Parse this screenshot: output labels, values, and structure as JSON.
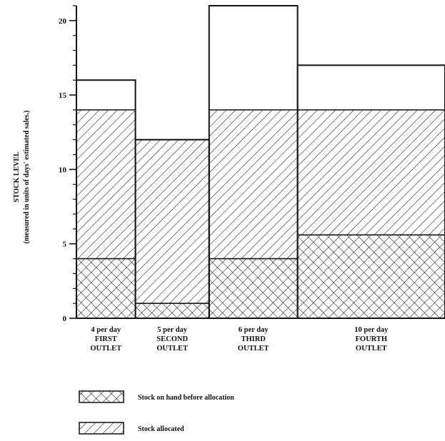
{
  "chart_data": {
    "type": "bar",
    "ylabel_line1": "STOCK LEVEL",
    "ylabel_line2": "(measured in units of days' estimated sales.)",
    "ylim": [
      0,
      21
    ],
    "yticks": [
      0,
      5,
      10,
      15,
      20
    ],
    "y_minor_tick_step": 1,
    "categories": [
      {
        "rate": "4 per day",
        "name_line1": "FIRST",
        "name_line2": "OUTLET",
        "rate_per_day": 4
      },
      {
        "rate": "5 per day",
        "name_line1": "SECOND",
        "name_line2": "OUTLET",
        "rate_per_day": 5
      },
      {
        "rate": "6 per day",
        "name_line1": "THIRD",
        "name_line2": "OUTLET",
        "rate_per_day": 6
      },
      {
        "rate": "10 per day",
        "name_line1": "FOURTH",
        "name_line2": "OUTLET",
        "rate_per_day": 10
      }
    ],
    "series": [
      {
        "name": "Stock on hand before allocation",
        "pattern": "crosshatch",
        "values": [
          4,
          1,
          4,
          5.6
        ]
      },
      {
        "name": "Stock allocated",
        "pattern": "diagonal",
        "values": [
          10,
          11,
          10,
          8.4
        ]
      }
    ],
    "outline_totals": [
      16,
      12,
      21,
      17
    ],
    "legend_position": "bottom-left",
    "grid": false,
    "colors": {
      "ink": "#111111",
      "background": "#ffffff"
    }
  }
}
